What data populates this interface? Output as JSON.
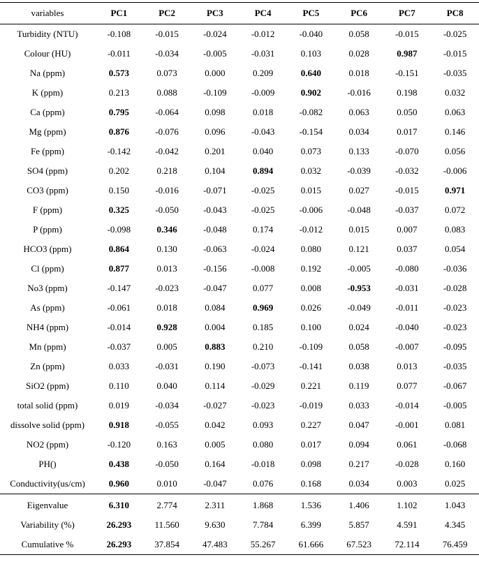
{
  "table": {
    "header": {
      "label": "variables",
      "columns": [
        "PC1",
        "PC2",
        "PC3",
        "PC4",
        "PC5",
        "PC6",
        "PC7",
        "PC8"
      ]
    },
    "rows": [
      {
        "variable": "Turbidity (NTU)",
        "values": [
          "-0.108",
          "-0.015",
          "-0.024",
          "-0.012",
          "-0.040",
          "0.058",
          "-0.015",
          "-0.025"
        ],
        "bold": []
      },
      {
        "variable": "Colour (HU)",
        "values": [
          "-0.011",
          "-0.034",
          "-0.005",
          "-0.031",
          "0.103",
          "0.028",
          "0.987",
          "-0.015"
        ],
        "bold": [
          6
        ]
      },
      {
        "variable": "Na (ppm)",
        "values": [
          "0.573",
          "0.073",
          "0.000",
          "0.209",
          "0.640",
          "0.018",
          "-0.151",
          "-0.035"
        ],
        "bold": [
          0,
          4
        ]
      },
      {
        "variable": "K (ppm)",
        "values": [
          "0.213",
          "0.088",
          "-0.109",
          "-0.009",
          "0.902",
          "-0.016",
          "0.198",
          "0.032"
        ],
        "bold": [
          4
        ]
      },
      {
        "variable": "Ca (ppm)",
        "values": [
          "0.795",
          "-0.064",
          "0.098",
          "0.018",
          "-0.082",
          "0.063",
          "0.050",
          "0.063"
        ],
        "bold": [
          0
        ]
      },
      {
        "variable": "Mg (ppm)",
        "values": [
          "0.876",
          "-0.076",
          "0.096",
          "-0.043",
          "-0.154",
          "0.034",
          "0.017",
          "0.146"
        ],
        "bold": [
          0
        ]
      },
      {
        "variable": "Fe (ppm)",
        "values": [
          "-0.142",
          "-0.042",
          "0.201",
          "0.040",
          "0.073",
          "0.133",
          "-0.070",
          "0.056"
        ],
        "bold": []
      },
      {
        "variable": "SO4 (ppm)",
        "values": [
          "0.202",
          "0.218",
          "0.104",
          "0.894",
          "0.032",
          "-0.039",
          "-0.032",
          "-0.006"
        ],
        "bold": [
          3
        ]
      },
      {
        "variable": "CO3 (ppm)",
        "values": [
          "0.150",
          "-0.016",
          "-0.071",
          "-0.025",
          "0.015",
          "0.027",
          "-0.015",
          "0.971"
        ],
        "bold": [
          7
        ]
      },
      {
        "variable": "F (ppm)",
        "values": [
          "0.325",
          "-0.050",
          "-0.043",
          "-0.025",
          "-0.006",
          "-0.048",
          "-0.037",
          "0.072"
        ],
        "bold": [
          0
        ]
      },
      {
        "variable": "P (ppm)",
        "values": [
          "-0.098",
          "0.346",
          "-0.048",
          "0.174",
          "-0.012",
          "0.015",
          "0.007",
          "0.083"
        ],
        "bold": [
          1
        ]
      },
      {
        "variable": "HCO3 (ppm)",
        "values": [
          "0.864",
          "0.130",
          "-0.063",
          "-0.024",
          "0.080",
          "0.121",
          "0.037",
          "0.054"
        ],
        "bold": [
          0
        ]
      },
      {
        "variable": "Cl (ppm)",
        "values": [
          "0.877",
          "0.013",
          "-0.156",
          "-0.008",
          "0.192",
          "-0.005",
          "-0.080",
          "-0.036"
        ],
        "bold": [
          0
        ]
      },
      {
        "variable": "No3 (ppm)",
        "values": [
          "-0.147",
          "-0.023",
          "-0.047",
          "0.077",
          "0.008",
          "-0.953",
          "-0.031",
          "-0.028"
        ],
        "bold": [
          5
        ]
      },
      {
        "variable": "As (ppm)",
        "values": [
          "-0.061",
          "0.018",
          "0.084",
          "0.969",
          "0.026",
          "-0.049",
          "-0.011",
          "-0.023"
        ],
        "bold": [
          3
        ]
      },
      {
        "variable": "NH4 (ppm)",
        "values": [
          "-0.014",
          "0.928",
          "0.004",
          "0.185",
          "0.100",
          "0.024",
          "-0.040",
          "-0.023"
        ],
        "bold": [
          1
        ]
      },
      {
        "variable": "Mn (ppm)",
        "values": [
          "-0.037",
          "0.005",
          "0.883",
          "0.210",
          "-0.109",
          "0.058",
          "-0.007",
          "-0.095"
        ],
        "bold": [
          2
        ]
      },
      {
        "variable": "Zn (ppm)",
        "values": [
          "0.033",
          "-0.031",
          "0.190",
          "-0.073",
          "-0.141",
          "0.038",
          "0.013",
          "-0.035"
        ],
        "bold": []
      },
      {
        "variable": "SiO2 (ppm)",
        "values": [
          "0.110",
          "0.040",
          "0.114",
          "-0.029",
          "0.221",
          "0.119",
          "0.077",
          "-0.067"
        ],
        "bold": []
      },
      {
        "variable": "total solid (ppm)",
        "values": [
          "0.019",
          "-0.034",
          "-0.027",
          "-0.023",
          "-0.019",
          "0.033",
          "-0.014",
          "-0.005"
        ],
        "bold": []
      },
      {
        "variable": "dissolve solid (ppm)",
        "values": [
          "0.918",
          "-0.055",
          "0.042",
          "0.093",
          "0.227",
          "0.047",
          "-0.001",
          "0.081"
        ],
        "bold": [
          0
        ]
      },
      {
        "variable": "NO2 (ppm)",
        "values": [
          "-0.120",
          "0.163",
          "0.005",
          "0.080",
          "0.017",
          "0.094",
          "0.061",
          "-0.068"
        ],
        "bold": []
      },
      {
        "variable": "PH()",
        "values": [
          "0.438",
          "-0.050",
          "0.164",
          "-0.018",
          "0.098",
          "0.217",
          "-0.028",
          "0.160"
        ],
        "bold": [
          0
        ]
      },
      {
        "variable": "Conductivity(us/cm)",
        "values": [
          "0.960",
          "0.010",
          "-0.047",
          "0.076",
          "0.168",
          "0.034",
          "0.003",
          "0.025"
        ],
        "bold": [
          0
        ]
      }
    ],
    "summary_rows": [
      {
        "variable": "Eigenvalue",
        "values": [
          "6.310",
          "2.774",
          "2.311",
          "1.868",
          "1.536",
          "1.406",
          "1.102",
          "1.043"
        ],
        "bold": [
          0
        ]
      },
      {
        "variable": "Variability (%)",
        "values": [
          "26.293",
          "11.560",
          "9.630",
          "7.784",
          "6.399",
          "5.857",
          "4.591",
          "4.345"
        ],
        "bold": [
          0
        ]
      },
      {
        "variable": "Cumulative %",
        "values": [
          "26.293",
          "37.854",
          "47.483",
          "55.267",
          "61.666",
          "67.523",
          "72.114",
          "76.459"
        ],
        "bold": [
          0
        ]
      }
    ]
  }
}
